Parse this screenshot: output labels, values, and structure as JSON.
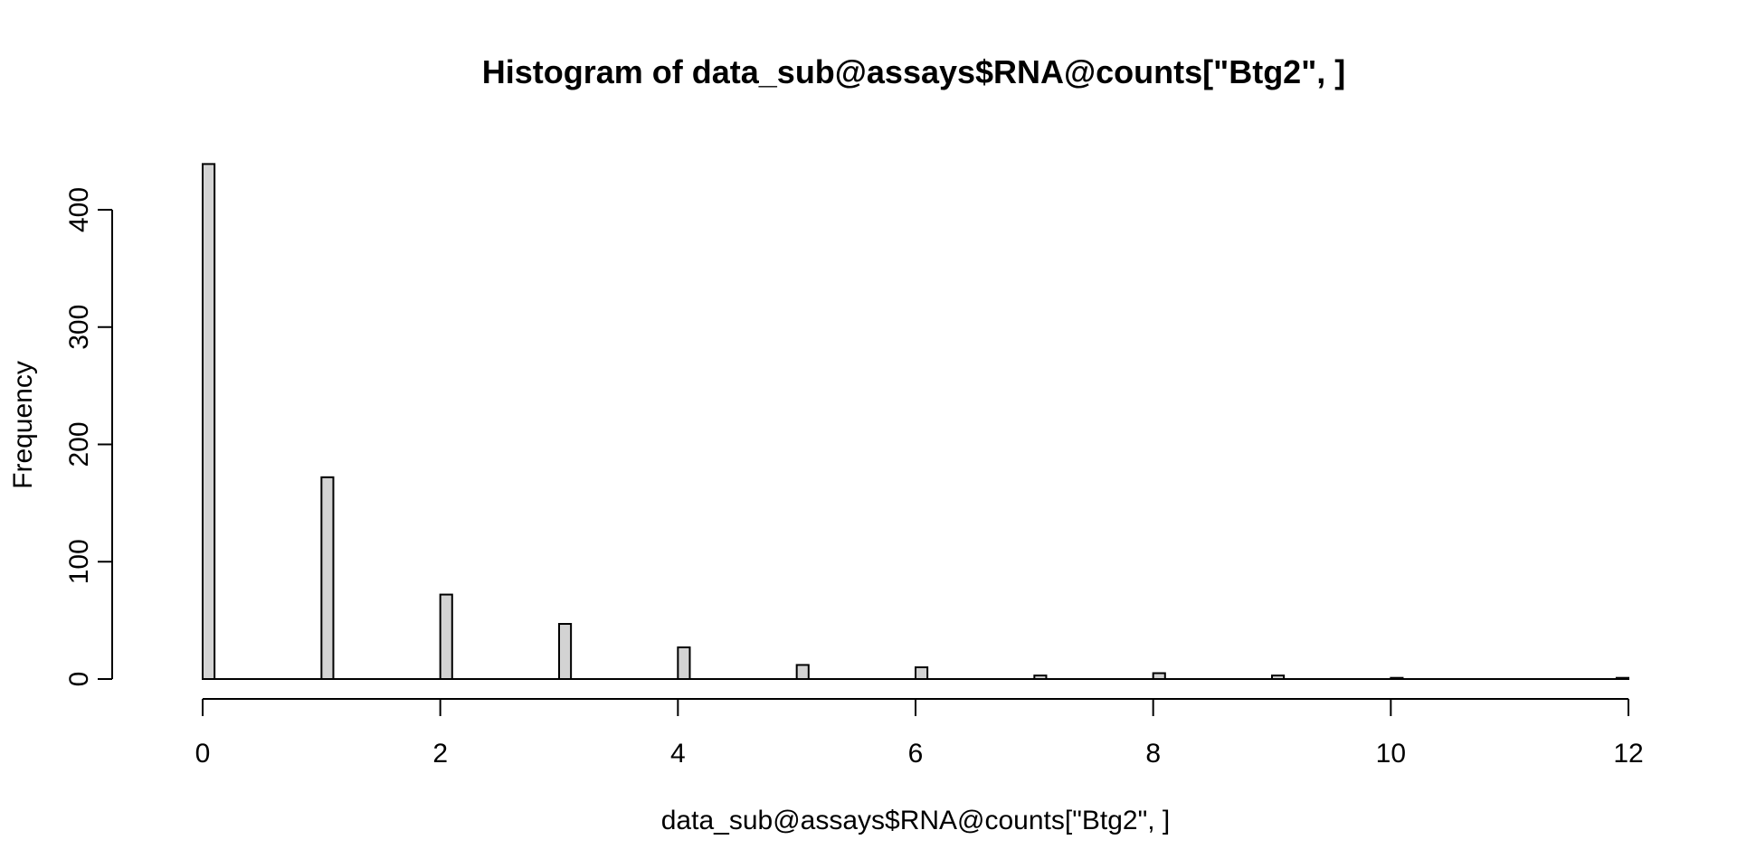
{
  "chart_data": {
    "type": "bar",
    "title": "Histogram of data_sub@assays$RNA@counts[\"Btg2\", ]",
    "xlabel": "data_sub@assays$RNA@counts[\"Btg2\", ]",
    "ylabel": "Frequency",
    "xlim": [
      0,
      12
    ],
    "ylim": [
      0,
      400
    ],
    "x_ticks": [
      0,
      2,
      4,
      6,
      8,
      10,
      12
    ],
    "y_ticks": [
      0,
      100,
      200,
      300,
      400
    ],
    "bin_width": 0.1,
    "bins": [
      {
        "x": 0,
        "count": 439
      },
      {
        "x": 1,
        "count": 172
      },
      {
        "x": 2,
        "count": 72
      },
      {
        "x": 3,
        "count": 47
      },
      {
        "x": 4,
        "count": 27
      },
      {
        "x": 5,
        "count": 12
      },
      {
        "x": 6,
        "count": 10
      },
      {
        "x": 7,
        "count": 3
      },
      {
        "x": 8,
        "count": 5
      },
      {
        "x": 9,
        "count": 3
      },
      {
        "x": 10,
        "count": 1
      },
      {
        "x": 11.9,
        "count": 1
      }
    ],
    "grid": false,
    "bar_fill": "#d3d3d3",
    "bar_stroke": "#000000"
  }
}
